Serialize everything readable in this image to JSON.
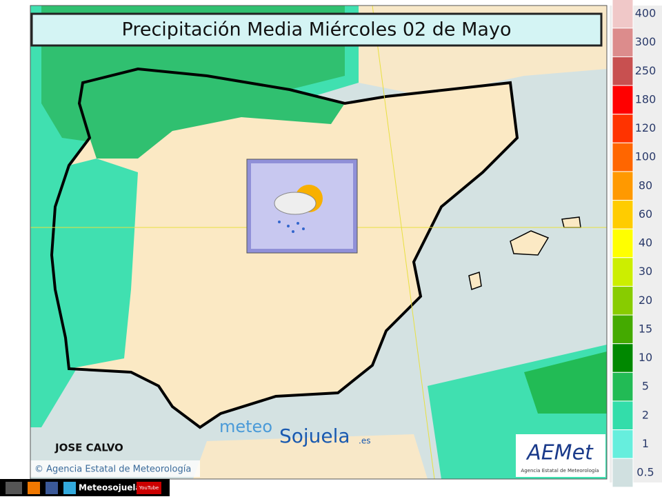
{
  "header": {
    "title": "Precipitación Media Miércoles 02 de Mayo"
  },
  "legend": [
    {
      "value": 400,
      "color": "#f0c8c8"
    },
    {
      "value": 300,
      "color": "#dc8c8c"
    },
    {
      "value": 250,
      "color": "#c85050"
    },
    {
      "value": 180,
      "color": "#ff0000"
    },
    {
      "value": 120,
      "color": "#ff3300"
    },
    {
      "value": 100,
      "color": "#ff6600"
    },
    {
      "value": 80,
      "color": "#ff9900"
    },
    {
      "value": 60,
      "color": "#ffcc00"
    },
    {
      "value": 40,
      "color": "#ffff00"
    },
    {
      "value": 30,
      "color": "#ccee00"
    },
    {
      "value": 20,
      "color": "#88cc00"
    },
    {
      "value": 15,
      "color": "#44aa00"
    },
    {
      "value": 10,
      "color": "#008800"
    },
    {
      "value": 5,
      "color": "#22bb55"
    },
    {
      "value": 2,
      "color": "#33ddaa"
    },
    {
      "value": 1,
      "color": "#66eedd"
    },
    {
      "value": 0.5,
      "color": "#d0e0e0"
    }
  ],
  "credits": {
    "author": "JOSE CALVO",
    "source": "© Agencia Estatal de Meteorología",
    "brand_meteo": "meteo",
    "brand_sojuela": "Sojuela",
    "brand_es": ".es",
    "aemet": "AEMet",
    "aemet_sub": "Agencia Estatal de Meteorología"
  },
  "footer": {
    "site": "Meteosojuela",
    "youtube": "YouTube"
  }
}
